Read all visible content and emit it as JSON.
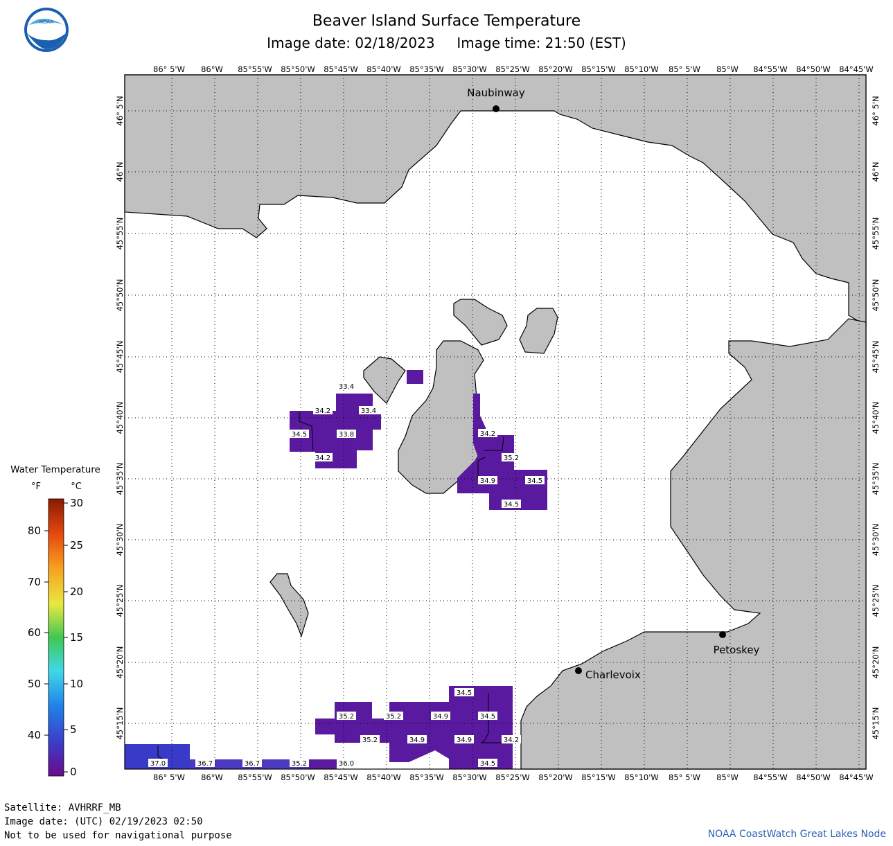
{
  "title": "Beaver Island Surface Temperature",
  "subtitle_date": "Image date: 02/18/2023",
  "subtitle_time": "Image time: 21:50 (EST)",
  "logo_text": "NOAA",
  "legend": {
    "title": "Water Temperature",
    "unit_f": "°F",
    "unit_c": "°C",
    "f_ticks": [
      "80",
      "70",
      "60",
      "50",
      "40"
    ],
    "c_ticks": [
      "30",
      "25",
      "20",
      "15",
      "10",
      "5",
      "0"
    ]
  },
  "lon_labels": [
    "86° 5'W",
    "86°W",
    "85°55'W",
    "85°50'W",
    "85°45'W",
    "85°40'W",
    "85°35'W",
    "85°30'W",
    "85°25'W",
    "85°20'W",
    "85°15'W",
    "85°10'W",
    "85° 5'W",
    "85°W",
    "84°55'W",
    "84°50'W",
    "84°45'W"
  ],
  "lat_labels": [
    "46° 5'N",
    "46°N",
    "45°55'N",
    "45°50'N",
    "45°45'N",
    "45°40'N",
    "45°35'N",
    "45°30'N",
    "45°25'N",
    "45°20'N",
    "45°15'N"
  ],
  "cities": [
    {
      "name": "Naubinway"
    },
    {
      "name": "Charlevoix"
    },
    {
      "name": "Petoskey"
    }
  ],
  "temp_tags": [
    "33.4",
    "34.2",
    "33.4",
    "34.5",
    "33.8",
    "34.2",
    "34.2",
    "35.2",
    "34.9",
    "34.5",
    "34.5",
    "34.5",
    "35.2",
    "35.2",
    "34.9",
    "34.5",
    "35.2",
    "34.9",
    "34.9",
    "34.2",
    "37.0",
    "36.7",
    "36.7",
    "35.2",
    "36.0",
    "34.5"
  ],
  "footer": {
    "satellite": "Satellite: AVHRRF_MB",
    "utc_date": "Image date: (UTC) 02/19/2023  02:50",
    "disclaimer": "Not to be used for navigational purpose",
    "credit": "NOAA CoastWatch Great Lakes Node"
  },
  "colors": {
    "land": "#c0c0c0",
    "water": "#ffffff",
    "cold_water": "#5a1aa0",
    "warm_water": "#3a3ac8",
    "credit": "#2b5fb4"
  }
}
